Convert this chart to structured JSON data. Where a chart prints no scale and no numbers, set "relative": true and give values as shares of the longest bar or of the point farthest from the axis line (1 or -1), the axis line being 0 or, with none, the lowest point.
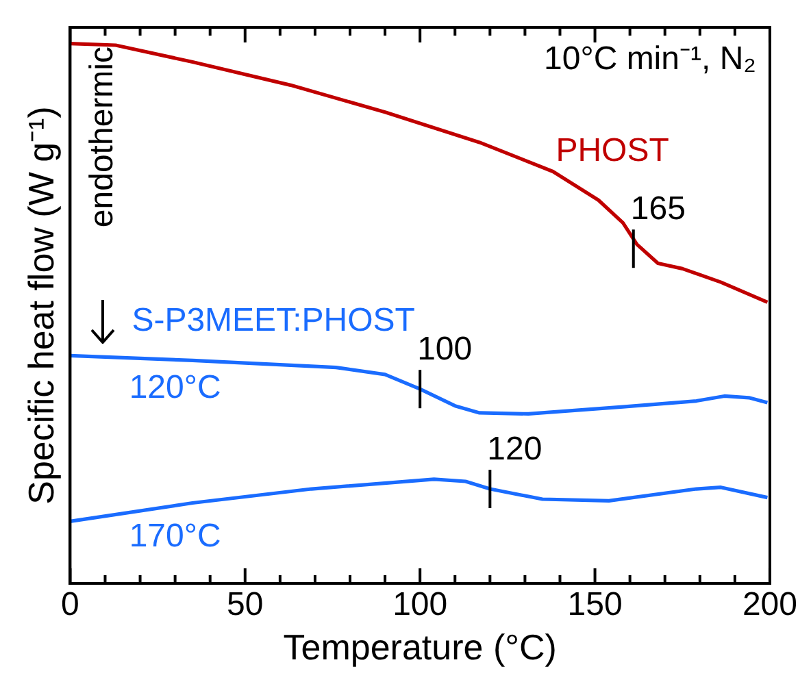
{
  "chart_data": {
    "type": "line",
    "xlabel": "Temperature (°C)",
    "ylabel": "Specific heat flow (W g⁻¹)",
    "relative": true,
    "tick_labels": "x",
    "grid": false,
    "legend": false,
    "marker": "none",
    "line_style": "solid",
    "xlim": [
      0,
      200
    ],
    "xticks": [
      0,
      {
        "value": 10,
        "label": null
      },
      {
        "value": 20,
        "label": null
      },
      {
        "value": 30,
        "label": null
      },
      {
        "value": 40,
        "label": null
      },
      50,
      {
        "value": 60,
        "label": null
      },
      {
        "value": 70,
        "label": null
      },
      {
        "value": 80,
        "label": null
      },
      {
        "value": 90,
        "label": null
      },
      100,
      {
        "value": 110,
        "label": null
      },
      {
        "value": 120,
        "label": null
      },
      {
        "value": 130,
        "label": null
      },
      {
        "value": 140,
        "label": null
      },
      150,
      {
        "value": 160,
        "label": null
      },
      {
        "value": 170,
        "label": null
      },
      {
        "value": 180,
        "label": null
      },
      {
        "value": 190,
        "label": null
      },
      200
    ],
    "series": [
      {
        "name": "PHOST",
        "color": "#c00000",
        "x": [
          0,
          13,
          35,
          63,
          90,
          117,
          138,
          151,
          158,
          162,
          168,
          175,
          186,
          199.3
        ],
        "values": [
          1.0,
          0.997,
          0.966,
          0.923,
          0.873,
          0.817,
          0.763,
          0.71,
          0.668,
          0.628,
          0.593,
          0.583,
          0.558,
          0.521
        ]
      },
      {
        "name": "120°C",
        "color": "#1a6cff",
        "x": [
          0,
          35,
          76,
          90,
          100,
          110,
          117,
          131,
          158,
          179,
          187,
          194,
          199.3
        ],
        "values": [
          0.422,
          0.413,
          0.4,
          0.387,
          0.36,
          0.329,
          0.316,
          0.314,
          0.327,
          0.338,
          0.347,
          0.344,
          0.335
        ]
      },
      {
        "name": "170°C",
        "color": "#1a6cff",
        "x": [
          0,
          35,
          69,
          104,
          113,
          120,
          135,
          154,
          179,
          186,
          199.3
        ],
        "values": [
          0.115,
          0.149,
          0.175,
          0.193,
          0.189,
          0.175,
          0.156,
          0.153,
          0.175,
          0.178,
          0.159
        ]
      }
    ],
    "annotations": [
      "10°C min⁻¹, N₂",
      "endothermic",
      "S-P3MEET:PHOST",
      {
        "text": "165",
        "x": 161,
        "y": 0.62
      },
      {
        "text": "100",
        "x": 100,
        "y": 0.36
      },
      {
        "text": "120",
        "x": 120,
        "y": 0.175
      }
    ]
  }
}
